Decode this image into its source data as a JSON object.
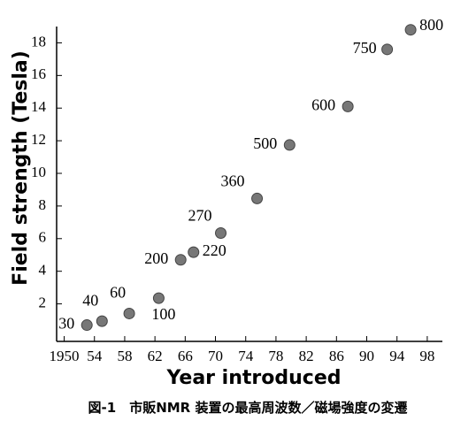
{
  "chart_data": {
    "type": "scatter",
    "x_label": "Year introduced",
    "y_label": "Field strength (Tesla)",
    "caption": "図-1　市販NMR 装置の最高周波数／磁場強度の変遷",
    "x": [
      1953,
      1955,
      1958.6,
      1962.5,
      1965.4,
      1967.1,
      1970.7,
      1975.5,
      1979.8,
      1987.5,
      1992.7,
      1995.8
    ],
    "values": [
      0.7,
      0.94,
      1.41,
      2.35,
      4.7,
      5.17,
      6.34,
      8.46,
      11.74,
      14.1,
      17.6,
      18.8
    ],
    "labels": [
      "30",
      "40",
      "60",
      "100",
      "200",
      "220",
      "270",
      "360",
      "500",
      "600",
      "750",
      "800"
    ],
    "color": "#777777",
    "xlim": [
      1949,
      2000
    ],
    "ylim": [
      -0.3,
      19
    ],
    "xticks": [
      1950,
      {
        "value": 1954,
        "label": "54"
      },
      {
        "value": 1958,
        "label": "58"
      },
      {
        "value": 1962,
        "label": "62"
      },
      {
        "value": 1966,
        "label": "66"
      },
      {
        "value": 1970,
        "label": "70"
      },
      {
        "value": 1974,
        "label": "74"
      },
      {
        "value": 1978,
        "label": "78"
      },
      {
        "value": 1982,
        "label": "82"
      },
      {
        "value": 1986,
        "label": "86"
      },
      {
        "value": 1990,
        "label": "90"
      },
      {
        "value": 1994,
        "label": "94"
      },
      {
        "value": 1998,
        "label": "98"
      }
    ],
    "yticks": [
      2,
      4,
      6,
      8,
      10,
      12,
      14,
      16,
      18
    ]
  }
}
